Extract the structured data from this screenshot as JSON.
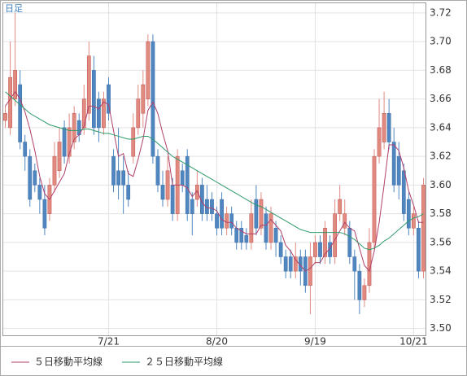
{
  "chart_data": {
    "type": "candlestick",
    "label": "日足",
    "categories": [
      null,
      null,
      null,
      null,
      null,
      null,
      null,
      null,
      null,
      null,
      null,
      null,
      null,
      null,
      null,
      null,
      null,
      null,
      null,
      null,
      null,
      "7/21",
      null,
      null,
      null,
      null,
      null,
      null,
      null,
      null,
      null,
      null,
      null,
      null,
      null,
      null,
      null,
      null,
      null,
      null,
      null,
      null,
      null,
      "8/20",
      null,
      null,
      null,
      null,
      null,
      null,
      null,
      null,
      null,
      null,
      null,
      null,
      null,
      null,
      null,
      null,
      null,
      null,
      null,
      "9/19",
      null,
      null,
      null,
      null,
      null,
      null,
      null,
      null,
      null,
      null,
      null,
      null,
      null,
      null,
      null,
      null,
      null,
      null,
      null,
      "10/21",
      null,
      null
    ],
    "open": [
      3.645,
      3.64,
      3.66,
      3.67,
      3.63,
      3.62,
      3.61,
      3.6,
      3.59,
      3.58,
      3.6,
      3.61,
      3.64,
      3.62,
      3.63,
      3.645,
      3.64,
      3.65,
      3.68,
      3.66,
      3.64,
      3.67,
      3.62,
      3.61,
      3.61,
      3.6,
      3.62,
      3.64,
      3.65,
      3.66,
      3.7,
      3.62,
      3.6,
      3.59,
      3.6,
      3.58,
      3.61,
      3.62,
      3.59,
      3.59,
      3.6,
      3.59,
      3.59,
      3.58,
      3.59,
      3.57,
      3.58,
      3.57,
      3.57,
      3.565,
      3.56,
      3.59,
      3.57,
      3.58,
      3.56,
      3.57,
      3.56,
      3.55,
      3.55,
      3.54,
      3.55,
      3.55,
      3.53,
      3.55,
      3.56,
      3.55,
      3.56,
      3.55,
      3.58,
      3.57,
      3.57,
      3.55,
      3.54,
      3.52,
      3.53,
      3.56,
      3.62,
      3.63,
      3.65,
      3.63,
      3.62,
      3.61,
      3.59,
      3.57,
      3.57,
      3.54
    ],
    "high": [
      3.655,
      3.7,
      3.72,
      3.68,
      3.635,
      3.625,
      3.615,
      3.605,
      3.6,
      3.605,
      3.63,
      3.64,
      3.645,
      3.65,
      3.655,
      3.65,
      3.67,
      3.7,
      3.69,
      3.665,
      3.665,
      3.675,
      3.625,
      3.64,
      3.62,
      3.61,
      3.65,
      3.67,
      3.68,
      3.705,
      3.705,
      3.625,
      3.61,
      3.62,
      3.605,
      3.625,
      3.615,
      3.625,
      3.595,
      3.61,
      3.605,
      3.6,
      3.595,
      3.585,
      3.595,
      3.585,
      3.585,
      3.575,
      3.575,
      3.57,
      3.59,
      3.6,
      3.595,
      3.585,
      3.585,
      3.575,
      3.565,
      3.555,
      3.555,
      3.56,
      3.555,
      3.555,
      3.56,
      3.565,
      3.565,
      3.575,
      3.565,
      3.59,
      3.6,
      3.59,
      3.575,
      3.555,
      3.545,
      3.535,
      3.57,
      3.625,
      3.66,
      3.665,
      3.66,
      3.64,
      3.63,
      3.615,
      3.595,
      3.585,
      3.575,
      3.605
    ],
    "low": [
      3.64,
      3.635,
      3.655,
      3.625,
      3.61,
      3.585,
      3.595,
      3.58,
      3.565,
      3.575,
      3.595,
      3.605,
      3.615,
      3.615,
      3.625,
      3.63,
      3.635,
      3.645,
      3.635,
      3.63,
      3.635,
      3.645,
      3.595,
      3.59,
      3.58,
      3.585,
      3.615,
      3.635,
      3.64,
      3.655,
      3.615,
      3.595,
      3.585,
      3.585,
      3.575,
      3.575,
      3.595,
      3.575,
      3.565,
      3.585,
      3.575,
      3.575,
      3.575,
      3.565,
      3.565,
      3.565,
      3.565,
      3.555,
      3.555,
      3.555,
      3.555,
      3.565,
      3.565,
      3.555,
      3.555,
      3.55,
      3.545,
      3.535,
      3.535,
      3.535,
      3.53,
      3.525,
      3.51,
      3.545,
      3.545,
      3.545,
      3.545,
      3.545,
      3.575,
      3.565,
      3.545,
      3.52,
      3.51,
      3.515,
      3.525,
      3.555,
      3.615,
      3.625,
      3.625,
      3.595,
      3.59,
      3.575,
      3.565,
      3.565,
      3.535,
      3.535
    ],
    "close": [
      3.65,
      3.675,
      3.68,
      3.63,
      3.62,
      3.59,
      3.6,
      3.59,
      3.57,
      3.6,
      3.62,
      3.63,
      3.62,
      3.64,
      3.65,
      3.635,
      3.66,
      3.69,
      3.64,
      3.64,
      3.66,
      3.65,
      3.6,
      3.6,
      3.6,
      3.59,
      3.64,
      3.66,
      3.67,
      3.7,
      3.62,
      3.6,
      3.59,
      3.61,
      3.58,
      3.62,
      3.6,
      3.58,
      3.58,
      3.6,
      3.58,
      3.58,
      3.58,
      3.57,
      3.57,
      3.58,
      3.57,
      3.56,
      3.56,
      3.56,
      3.58,
      3.57,
      3.59,
      3.56,
      3.58,
      3.56,
      3.55,
      3.54,
      3.54,
      3.55,
      3.54,
      3.53,
      3.55,
      3.56,
      3.55,
      3.57,
      3.55,
      3.58,
      3.59,
      3.58,
      3.55,
      3.54,
      3.52,
      3.53,
      3.56,
      3.62,
      3.64,
      3.65,
      3.63,
      3.6,
      3.6,
      3.58,
      3.57,
      3.58,
      3.54,
      3.6
    ],
    "up_color": "#e08a80",
    "down_color": "#4f86c0",
    "series": [
      {
        "name": "５日移動平均線",
        "color": "#b0406a",
        "values": [
          3.655,
          3.66,
          3.665,
          3.66,
          3.651,
          3.639,
          3.624,
          3.606,
          3.594,
          3.59,
          3.596,
          3.602,
          3.608,
          3.622,
          3.632,
          3.635,
          3.641,
          3.655,
          3.655,
          3.653,
          3.658,
          3.656,
          3.638,
          3.62,
          3.622,
          3.608,
          3.606,
          3.618,
          3.632,
          3.652,
          3.658,
          3.65,
          3.636,
          3.624,
          3.6,
          3.6,
          3.6,
          3.598,
          3.592,
          3.596,
          3.588,
          3.584,
          3.584,
          3.582,
          3.576,
          3.574,
          3.574,
          3.57,
          3.568,
          3.566,
          3.566,
          3.566,
          3.572,
          3.572,
          3.576,
          3.572,
          3.568,
          3.558,
          3.554,
          3.548,
          3.544,
          3.54,
          3.542,
          3.546,
          3.546,
          3.552,
          3.556,
          3.562,
          3.568,
          3.574,
          3.57,
          3.568,
          3.556,
          3.544,
          3.54,
          3.554,
          3.574,
          3.6,
          3.628,
          3.628,
          3.624,
          3.612,
          3.596,
          3.586,
          3.574,
          3.574
        ]
      },
      {
        "name": "２５日移動平均線",
        "color": "#2e9a6a",
        "values": [
          3.665,
          3.662,
          3.659,
          3.656,
          3.653,
          3.65,
          3.648,
          3.646,
          3.644,
          3.642,
          3.641,
          3.64,
          3.639,
          3.638,
          3.638,
          3.638,
          3.639,
          3.639,
          3.638,
          3.637,
          3.636,
          3.636,
          3.635,
          3.634,
          3.633,
          3.632,
          3.632,
          3.633,
          3.634,
          3.634,
          3.632,
          3.629,
          3.626,
          3.623,
          3.62,
          3.618,
          3.616,
          3.614,
          3.612,
          3.61,
          3.608,
          3.606,
          3.604,
          3.602,
          3.6,
          3.598,
          3.596,
          3.594,
          3.592,
          3.59,
          3.588,
          3.586,
          3.585,
          3.583,
          3.581,
          3.579,
          3.577,
          3.575,
          3.573,
          3.571,
          3.569,
          3.568,
          3.567,
          3.567,
          3.567,
          3.567,
          3.567,
          3.567,
          3.567,
          3.566,
          3.564,
          3.562,
          3.559,
          3.556,
          3.555,
          3.556,
          3.558,
          3.561,
          3.563,
          3.566,
          3.569,
          3.572,
          3.575,
          3.577,
          3.578,
          3.58
        ]
      }
    ],
    "ylim": [
      3.495,
      3.727
    ],
    "yticks": [
      {
        "value": 3.5,
        "label": "3.50"
      },
      3.52,
      3.54,
      3.56,
      3.58,
      {
        "value": 3.6,
        "label": "3.60"
      },
      3.62,
      3.64,
      3.66,
      3.68,
      {
        "value": 3.7,
        "label": "3.70"
      },
      3.72
    ],
    "grid": true
  }
}
